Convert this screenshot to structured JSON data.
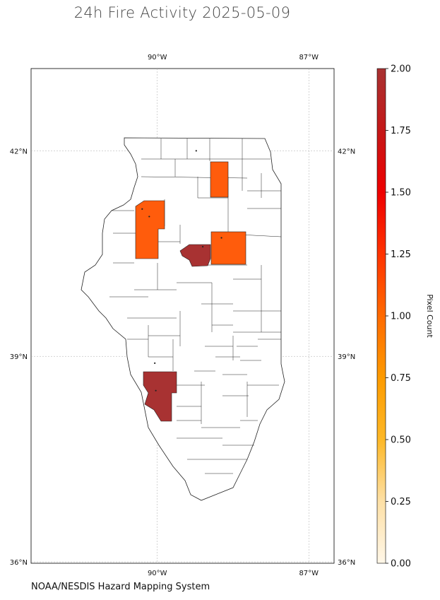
{
  "title": "24h Fire Activity 2025-05-09",
  "source": "NOAA/NESDIS Hazard Mapping System",
  "map": {
    "lon_range": [
      -92.5,
      -86.5
    ],
    "lat_range": [
      35.98,
      43.2
    ],
    "lon_ticks": [
      {
        "value": -90,
        "label": "90°W"
      },
      {
        "value": -87,
        "label": "87°W"
      }
    ],
    "lat_ticks": [
      {
        "value": 42,
        "label": "42°N"
      },
      {
        "value": 39,
        "label": "39°N"
      },
      {
        "value": 36,
        "label": "36°N"
      }
    ],
    "grid": true,
    "region": "Illinois counties"
  },
  "chart_data": {
    "type": "heatmap",
    "colorbar": {
      "label": "Pixel Count",
      "min": 0.0,
      "max": 2.0,
      "ticks": [
        "0.00",
        "0.25",
        "0.50",
        "0.75",
        "1.00",
        "1.25",
        "1.50",
        "1.75",
        "2.00"
      ],
      "colors": [
        "#fff7e8",
        "#fde0a6",
        "#fdb827",
        "#fd9b00",
        "#ff6a00",
        "#ff3300",
        "#ee0000",
        "#c41818",
        "#a83232"
      ]
    },
    "highlighted_counties": [
      {
        "value": 1,
        "color": "#ff5c0c"
      },
      {
        "value": 1,
        "color": "#ff5c0c"
      },
      {
        "value": 1,
        "color": "#ff5c0c"
      },
      {
        "value": 2,
        "color": "#a83232"
      },
      {
        "value": 2,
        "color": "#a83232"
      }
    ],
    "fire_points": [
      {
        "lon": -89.23,
        "lat": 42.0
      },
      {
        "lon": -90.3,
        "lat": 41.15
      },
      {
        "lon": -90.16,
        "lat": 41.04
      },
      {
        "lon": -88.73,
        "lat": 40.73
      },
      {
        "lon": -89.1,
        "lat": 40.6
      },
      {
        "lon": -90.05,
        "lat": 38.9
      },
      {
        "lon": -90.03,
        "lat": 38.5
      }
    ]
  }
}
